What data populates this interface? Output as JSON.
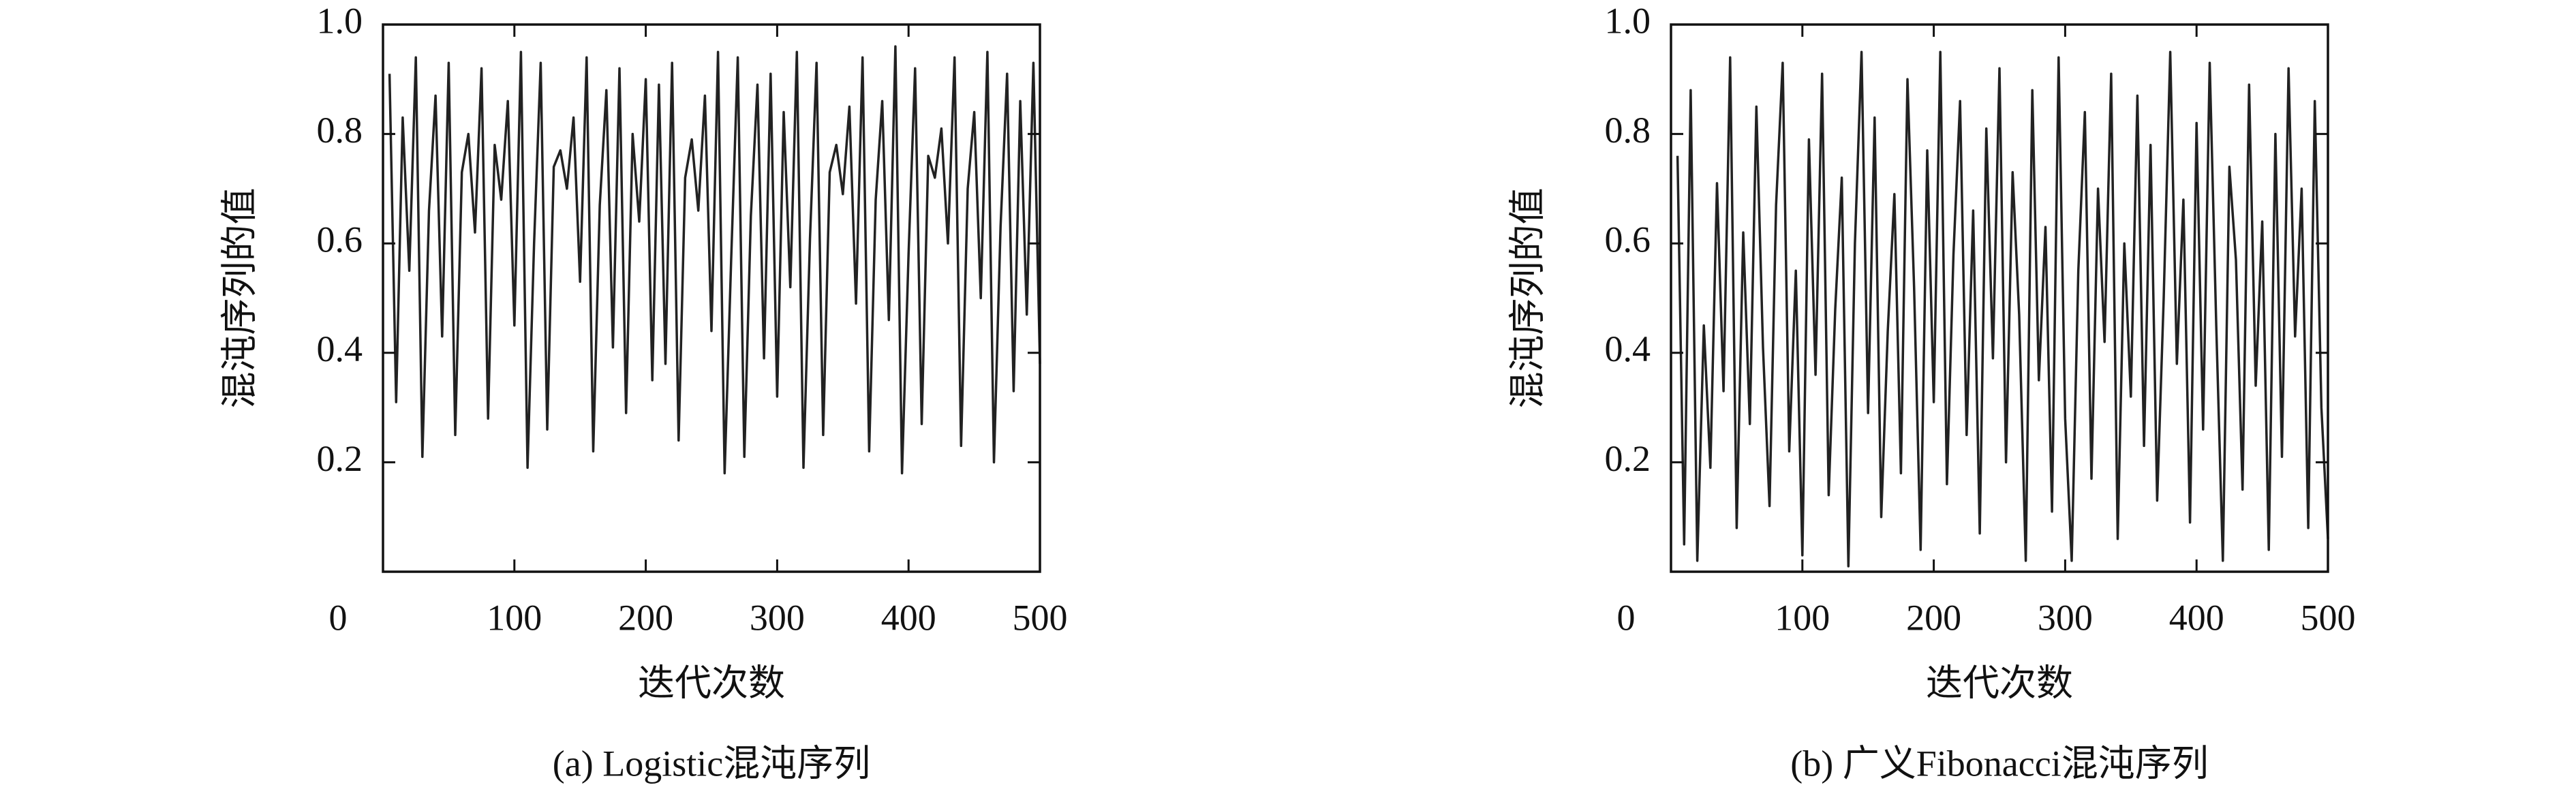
{
  "chart_data": [
    {
      "type": "line",
      "caption": "(a) Logistic混沌序列",
      "x_label": "迭代次数",
      "y_label": "混沌序列的值",
      "xlim": [
        0,
        500
      ],
      "ylim": [
        0,
        1
      ],
      "xticks": [
        0,
        100,
        200,
        300,
        400,
        500
      ],
      "yticks": [
        0.2,
        0.4,
        0.6,
        0.8,
        {
          "value": 1,
          "label": "1.0"
        }
      ],
      "x": [
        5,
        10,
        15,
        20,
        25,
        30,
        35,
        40,
        45,
        50,
        55,
        60,
        65,
        70,
        75,
        80,
        85,
        90,
        95,
        100,
        105,
        110,
        115,
        120,
        125,
        130,
        135,
        140,
        145,
        150,
        155,
        160,
        165,
        170,
        175,
        180,
        185,
        190,
        195,
        200,
        205,
        210,
        215,
        220,
        225,
        230,
        235,
        240,
        245,
        250,
        255,
        260,
        265,
        270,
        275,
        280,
        285,
        290,
        295,
        300,
        305,
        310,
        315,
        320,
        325,
        330,
        335,
        340,
        345,
        350,
        355,
        360,
        365,
        370,
        375,
        380,
        385,
        390,
        395,
        400,
        405,
        410,
        415,
        420,
        425,
        430,
        435,
        440,
        445,
        450,
        455,
        460,
        465,
        470,
        475,
        480,
        485,
        490,
        495,
        500
      ],
      "series": [
        {
          "color": "#222222",
          "values": [
            0.91,
            0.31,
            0.83,
            0.55,
            0.94,
            0.21,
            0.66,
            0.87,
            0.43,
            0.93,
            0.25,
            0.73,
            0.8,
            0.62,
            0.92,
            0.28,
            0.78,
            0.68,
            0.86,
            0.45,
            0.95,
            0.19,
            0.6,
            0.93,
            0.26,
            0.74,
            0.77,
            0.7,
            0.83,
            0.53,
            0.94,
            0.22,
            0.67,
            0.88,
            0.41,
            0.92,
            0.29,
            0.8,
            0.64,
            0.9,
            0.35,
            0.89,
            0.38,
            0.93,
            0.24,
            0.72,
            0.79,
            0.66,
            0.87,
            0.44,
            0.95,
            0.18,
            0.57,
            0.94,
            0.21,
            0.65,
            0.89,
            0.39,
            0.91,
            0.32,
            0.84,
            0.52,
            0.95,
            0.19,
            0.61,
            0.93,
            0.25,
            0.73,
            0.78,
            0.69,
            0.85,
            0.49,
            0.94,
            0.22,
            0.68,
            0.86,
            0.46,
            0.96,
            0.18,
            0.58,
            0.92,
            0.27,
            0.76,
            0.72,
            0.81,
            0.6,
            0.94,
            0.23,
            0.7,
            0.84,
            0.5,
            0.95,
            0.2,
            0.63,
            0.91,
            0.33,
            0.86,
            0.47,
            0.93,
            0.38
          ]
        }
      ]
    },
    {
      "type": "line",
      "caption": "(b) 广义Fibonacci混沌序列",
      "x_label": "迭代次数",
      "y_label": "混沌序列的值",
      "xlim": [
        0,
        500
      ],
      "ylim": [
        0,
        1
      ],
      "xticks": [
        0,
        100,
        200,
        300,
        400,
        500
      ],
      "yticks": [
        0.2,
        0.4,
        0.6,
        0.8,
        {
          "value": 1,
          "label": "1.0"
        }
      ],
      "x": [
        5,
        10,
        15,
        20,
        25,
        30,
        35,
        40,
        45,
        50,
        55,
        60,
        65,
        70,
        75,
        80,
        85,
        90,
        95,
        100,
        105,
        110,
        115,
        120,
        125,
        130,
        135,
        140,
        145,
        150,
        155,
        160,
        165,
        170,
        175,
        180,
        185,
        190,
        195,
        200,
        205,
        210,
        215,
        220,
        225,
        230,
        235,
        240,
        245,
        250,
        255,
        260,
        265,
        270,
        275,
        280,
        285,
        290,
        295,
        300,
        305,
        310,
        315,
        320,
        325,
        330,
        335,
        340,
        345,
        350,
        355,
        360,
        365,
        370,
        375,
        380,
        385,
        390,
        395,
        400,
        405,
        410,
        415,
        420,
        425,
        430,
        435,
        440,
        445,
        450,
        455,
        460,
        465,
        470,
        475,
        480,
        485,
        490,
        495,
        500
      ],
      "series": [
        {
          "color": "#222222",
          "values": [
            0.76,
            0.05,
            0.88,
            0.02,
            0.45,
            0.19,
            0.71,
            0.33,
            0.94,
            0.08,
            0.62,
            0.27,
            0.85,
            0.41,
            0.12,
            0.67,
            0.93,
            0.22,
            0.55,
            0.03,
            0.79,
            0.36,
            0.91,
            0.14,
            0.48,
            0.72,
            0.01,
            0.6,
            0.95,
            0.29,
            0.83,
            0.1,
            0.44,
            0.69,
            0.18,
            0.9,
            0.52,
            0.04,
            0.77,
            0.31,
            0.95,
            0.16,
            0.58,
            0.86,
            0.25,
            0.66,
            0.07,
            0.81,
            0.39,
            0.92,
            0.2,
            0.73,
            0.47,
            0.02,
            0.88,
            0.35,
            0.63,
            0.11,
            0.94,
            0.28,
            0.02,
            0.55,
            0.84,
            0.17,
            0.7,
            0.42,
            0.91,
            0.06,
            0.6,
            0.32,
            0.87,
            0.23,
            0.78,
            0.13,
            0.5,
            0.95,
            0.38,
            0.68,
            0.09,
            0.82,
            0.26,
            0.93,
            0.45,
            0.02,
            0.74,
            0.57,
            0.15,
            0.89,
            0.34,
            0.64,
            0.04,
            0.8,
            0.21,
            0.92,
            0.43,
            0.7,
            0.08,
            0.86,
            0.3,
            0.06
          ]
        }
      ]
    }
  ]
}
